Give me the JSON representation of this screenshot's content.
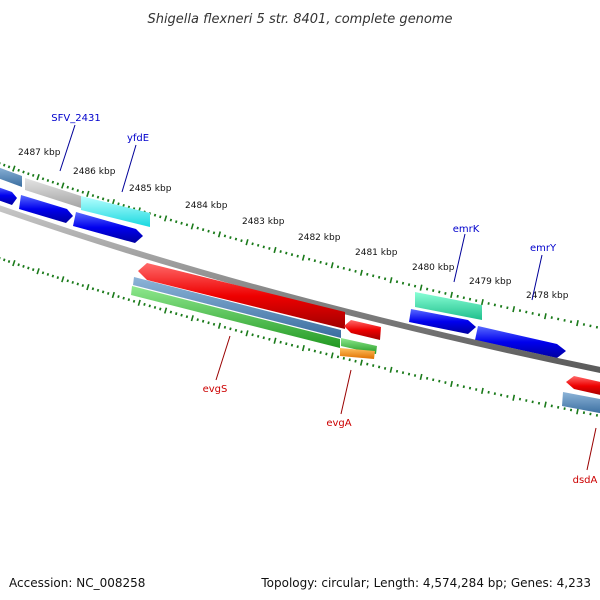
{
  "title": "Shigella flexneri 5 str. 8401, complete genome",
  "footer": {
    "accession": "Accession: NC_008258",
    "summary": "Topology: circular; Length: 4,574,284 bp; Genes: 4,233"
  },
  "ruler": {
    "kbp_labels": [
      "2487 kbp",
      "2486 kbp",
      "2485 kbp",
      "2484 kbp",
      "2483 kbp",
      "2482 kbp",
      "2481 kbp",
      "2480 kbp",
      "2479 kbp",
      "2478 kbp"
    ]
  },
  "genes": {
    "forward": [
      {
        "label": "SFV_2431",
        "color": "#0000cc"
      },
      {
        "label": "yfdE",
        "color": "#0000cc"
      },
      {
        "label": "emrK",
        "color": "#0000cc"
      },
      {
        "label": "emrY",
        "color": "#0000cc"
      }
    ],
    "reverse": [
      {
        "label": "evgS",
        "color": "#dd0000"
      },
      {
        "label": "evgA",
        "color": "#dd0000"
      },
      {
        "label": "dsdA",
        "color": "#dd0000"
      }
    ]
  },
  "colors": {
    "backbone": "#808080",
    "tick": "#1a7a1a",
    "forward_cds": "#0000ee",
    "reverse_cds": "#ee0000",
    "gray_feature": "#b8b8b8",
    "cyan_feature": "#22e8e8",
    "teal_feature": "#33ddaa",
    "steel_feature": "#4a7fb0",
    "green_feature": "#33bb33",
    "orange_feature": "#ff8800"
  }
}
